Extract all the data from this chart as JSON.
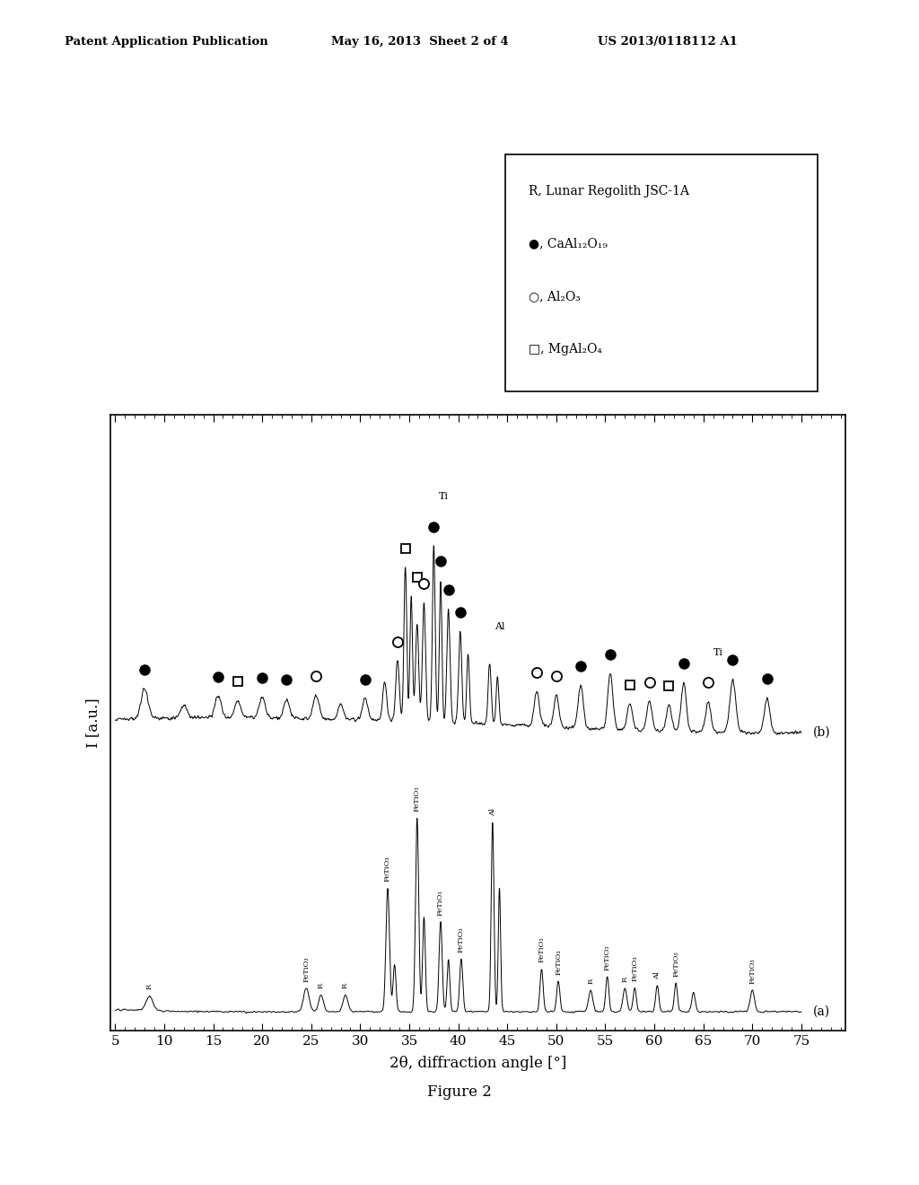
{
  "header_left": "Patent Application Publication",
  "header_center": "May 16, 2013  Sheet 2 of 4",
  "header_right": "US 2013/0118112 A1",
  "xlabel": "2θ, diffraction angle [°]",
  "ylabel": "I [a.u.]",
  "xmin": 5,
  "xmax": 75,
  "xticks": [
    5,
    10,
    15,
    20,
    25,
    30,
    35,
    40,
    45,
    50,
    55,
    60,
    65,
    70,
    75
  ],
  "figure_caption": "Figure 2",
  "background_color": "#ffffff",
  "line_color": "#000000",
  "legend_texts": [
    "R, Lunar Regolith JSC-1A",
    "●, CaAl₁₂O₁₉",
    "○, Al₂O₃",
    "□, MgAl₂O₄"
  ],
  "curve_a_peaks": [
    [
      8.5,
      0.06,
      0.35
    ],
    [
      24.5,
      0.1,
      0.28
    ],
    [
      26.0,
      0.07,
      0.25
    ],
    [
      28.5,
      0.07,
      0.25
    ],
    [
      32.8,
      0.52,
      0.18
    ],
    [
      33.5,
      0.2,
      0.15
    ],
    [
      35.8,
      0.82,
      0.16
    ],
    [
      36.5,
      0.4,
      0.14
    ],
    [
      38.2,
      0.38,
      0.16
    ],
    [
      39.0,
      0.22,
      0.14
    ],
    [
      40.3,
      0.22,
      0.16
    ],
    [
      43.5,
      0.8,
      0.14
    ],
    [
      44.2,
      0.52,
      0.12
    ],
    [
      48.5,
      0.18,
      0.16
    ],
    [
      50.2,
      0.13,
      0.16
    ],
    [
      53.5,
      0.09,
      0.22
    ],
    [
      55.2,
      0.15,
      0.16
    ],
    [
      57.0,
      0.1,
      0.2
    ],
    [
      58.0,
      0.1,
      0.16
    ],
    [
      60.3,
      0.11,
      0.16
    ],
    [
      62.2,
      0.12,
      0.16
    ],
    [
      64.0,
      0.08,
      0.18
    ],
    [
      70.0,
      0.09,
      0.22
    ]
  ],
  "curve_a_annotations": [
    [
      8.5,
      "R"
    ],
    [
      24.5,
      "FeTiO₃"
    ],
    [
      26.0,
      "R"
    ],
    [
      28.5,
      "R"
    ],
    [
      32.8,
      "FeTiO₃"
    ],
    [
      35.8,
      "FeTiO₃"
    ],
    [
      38.2,
      "FeTiO₃"
    ],
    [
      40.3,
      "FeTiO₃"
    ],
    [
      43.5,
      "Al"
    ],
    [
      48.5,
      "FeTiO₃"
    ],
    [
      50.2,
      "FeTiO₃"
    ],
    [
      53.5,
      "R"
    ],
    [
      55.2,
      "FeTiO₃"
    ],
    [
      57.0,
      "R"
    ],
    [
      58.0,
      "FeTiO₃"
    ],
    [
      60.3,
      "Al"
    ],
    [
      62.2,
      "FeTiO₃"
    ],
    [
      70.0,
      "FeTiO₃"
    ]
  ],
  "curve_b_peaks": [
    [
      8.0,
      0.14,
      0.35
    ],
    [
      12.0,
      0.06,
      0.3
    ],
    [
      15.5,
      0.1,
      0.3
    ],
    [
      17.5,
      0.08,
      0.28
    ],
    [
      20.0,
      0.09,
      0.3
    ],
    [
      22.5,
      0.09,
      0.28
    ],
    [
      25.5,
      0.11,
      0.3
    ],
    [
      28.0,
      0.07,
      0.28
    ],
    [
      30.5,
      0.1,
      0.28
    ],
    [
      32.5,
      0.18,
      0.2
    ],
    [
      33.8,
      0.28,
      0.18
    ],
    [
      34.6,
      0.72,
      0.14
    ],
    [
      35.2,
      0.58,
      0.13
    ],
    [
      35.8,
      0.45,
      0.16
    ],
    [
      36.5,
      0.55,
      0.16
    ],
    [
      37.5,
      0.82,
      0.14
    ],
    [
      38.2,
      0.65,
      0.13
    ],
    [
      39.0,
      0.52,
      0.16
    ],
    [
      40.2,
      0.42,
      0.16
    ],
    [
      41.0,
      0.32,
      0.14
    ],
    [
      43.2,
      0.28,
      0.16
    ],
    [
      44.0,
      0.22,
      0.14
    ],
    [
      48.0,
      0.16,
      0.26
    ],
    [
      50.0,
      0.15,
      0.26
    ],
    [
      52.5,
      0.2,
      0.26
    ],
    [
      55.5,
      0.26,
      0.26
    ],
    [
      57.5,
      0.12,
      0.26
    ],
    [
      59.5,
      0.14,
      0.26
    ],
    [
      61.5,
      0.12,
      0.26
    ],
    [
      63.0,
      0.22,
      0.26
    ],
    [
      65.5,
      0.14,
      0.26
    ],
    [
      68.0,
      0.24,
      0.3
    ],
    [
      71.5,
      0.16,
      0.28
    ]
  ],
  "curve_b_markers": [
    [
      8.0,
      "fc"
    ],
    [
      15.5,
      "fc"
    ],
    [
      17.5,
      "sq"
    ],
    [
      20.0,
      "fc"
    ],
    [
      22.5,
      "fc"
    ],
    [
      25.5,
      "oc"
    ],
    [
      30.5,
      "fc"
    ],
    [
      33.8,
      "oc"
    ],
    [
      34.6,
      "sq"
    ],
    [
      35.8,
      "sq"
    ],
    [
      36.5,
      "oc"
    ],
    [
      37.5,
      "fc"
    ],
    [
      38.2,
      "fc"
    ],
    [
      39.0,
      "fc"
    ],
    [
      40.2,
      "fc"
    ],
    [
      48.0,
      "oc"
    ],
    [
      50.0,
      "oc"
    ],
    [
      52.5,
      "fc"
    ],
    [
      55.5,
      "fc"
    ],
    [
      57.5,
      "sq"
    ],
    [
      59.5,
      "oc"
    ],
    [
      61.5,
      "sq"
    ],
    [
      63.0,
      "fc"
    ],
    [
      65.5,
      "oc"
    ],
    [
      68.0,
      "fc"
    ],
    [
      71.5,
      "fc"
    ]
  ],
  "curve_b_ti_labels": [
    [
      37.5,
      "Ti"
    ],
    [
      65.5,
      "Ti"
    ]
  ],
  "curve_b_al_label": [
    43.2,
    "Al"
  ]
}
